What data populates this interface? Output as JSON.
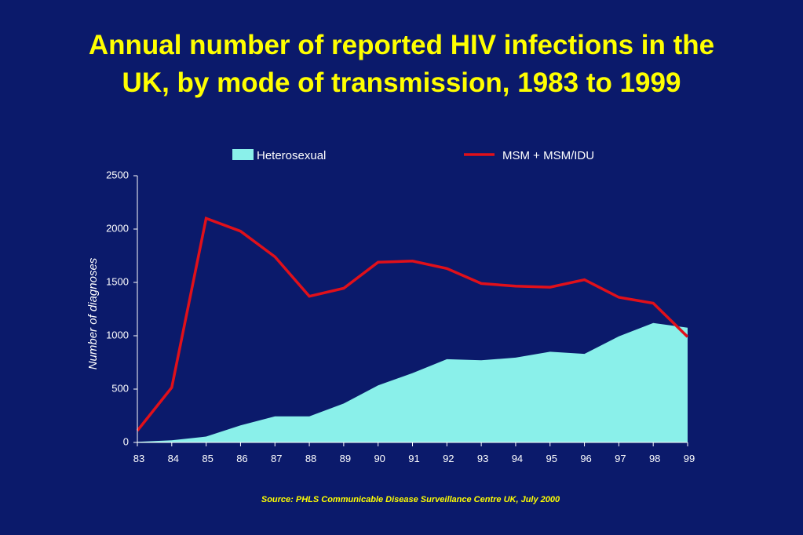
{
  "title": {
    "line1": "Annual number of reported HIV infections in the",
    "line2": "UK, by mode of transmission, 1983 to 1999"
  },
  "source": "Source: PHLS Communicable Disease Surveillance Centre UK, July 2000",
  "colors": {
    "background": "#0b1a6b",
    "title": "#ffff00",
    "heterosexual_fill": "#8af0ea",
    "msm_line": "#e0101a",
    "axis": "#ffffff"
  },
  "chart_data": {
    "type": "area",
    "categories": [
      "83",
      "84",
      "85",
      "86",
      "87",
      "88",
      "89",
      "90",
      "91",
      "92",
      "93",
      "94",
      "95",
      "96",
      "97",
      "98",
      "99"
    ],
    "ylabel": "Number of diagnoses",
    "xlabel": "",
    "ylim": [
      0,
      2500
    ],
    "yticks": [
      "0",
      "500",
      "1000",
      "1500",
      "2000",
      "2500"
    ],
    "grid": false,
    "legend_position": "top",
    "series": [
      {
        "name": "Heterosexual",
        "type": "area",
        "values": [
          5,
          20,
          55,
          160,
          245,
          245,
          365,
          535,
          650,
          780,
          770,
          795,
          850,
          830,
          995,
          1120,
          1075
        ]
      },
      {
        "name": "MSM + MSM/IDU",
        "type": "line",
        "values": [
          110,
          515,
          2100,
          1980,
          1740,
          1370,
          1445,
          1690,
          1700,
          1630,
          1490,
          1465,
          1455,
          1525,
          1360,
          1305,
          990
        ]
      }
    ]
  }
}
